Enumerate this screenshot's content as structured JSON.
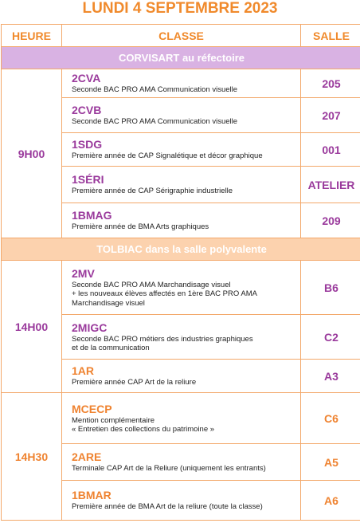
{
  "title": "LUNDI 4 SEPTEMBRE 2023",
  "header": [
    "HEURE",
    "CLASSE",
    "SALLE"
  ],
  "sections": [
    {
      "label": "CORVISART au réfectoire",
      "groups": [
        {
          "time": "9H00",
          "rows": [
            {
              "code": "2CVA",
              "lines": [
                "Seconde BAC PRO AMA Communication visuelle"
              ],
              "room": "205"
            },
            {
              "code": "2CVB",
              "lines": [
                "Seconde BAC PRO AMA Communication visuelle"
              ],
              "room": "207"
            },
            {
              "code": "1SDG",
              "lines": [
                "Première année de CAP Signalétique et décor graphique"
              ],
              "room": "001"
            },
            {
              "code": "1SÉRI",
              "lines": [
                "Première année de CAP Sérigraphie industrielle"
              ],
              "room": "ATELIER"
            },
            {
              "code": "1BMAG",
              "lines": [
                "Première année de BMA Arts graphiques"
              ],
              "room": "209"
            }
          ]
        }
      ]
    },
    {
      "label": "TOLBIAC dans la salle polyvalente",
      "groups": [
        {
          "time": "14H00",
          "rows": [
            {
              "code": "2MV",
              "lines": [
                "Seconde BAC PRO AMA Marchandisage visuel",
                "+ les nouveaux élèves affectés en 1ère BAC PRO AMA",
                "Marchandisage visuel"
              ],
              "room": "B6"
            },
            {
              "code": "2MIGC",
              "lines": [
                "Seconde BAC PRO métiers des industries graphiques",
                "et de la communication"
              ],
              "room": "C2"
            },
            {
              "code": "1AR",
              "lines": [
                "Première année CAP Art de la reliure"
              ],
              "room": "A3"
            }
          ]
        },
        {
          "time": "14H30",
          "rows": [
            {
              "code": "MCECP",
              "lines": [
                "Mention complémentaire",
                "« Entretien des collections du patrimoine »"
              ],
              "room": "C6"
            },
            {
              "code": "2ARE",
              "lines": [
                "Terminale CAP Art de la Reliure (uniquement les entrants)"
              ],
              "room": "A5"
            },
            {
              "code": "1BMAR",
              "lines": [
                "Première année de BMA Art de la reliure (toute la classe)"
              ],
              "room": "A6"
            }
          ]
        }
      ]
    }
  ]
}
